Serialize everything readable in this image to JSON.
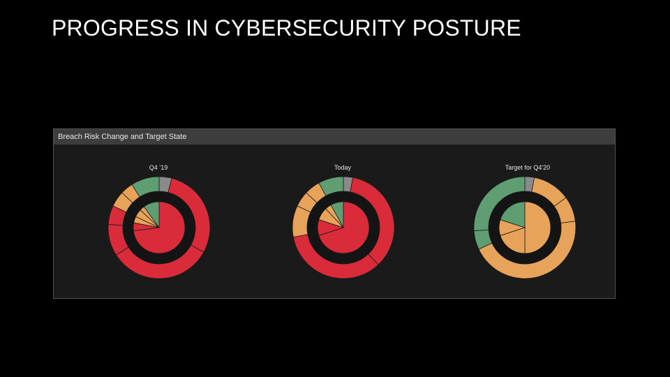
{
  "slide": {
    "title": "PROGRESS IN CYBERSECURITY POSTURE"
  },
  "panel": {
    "header": "Breach Risk Change and Target State"
  },
  "colors": {
    "red": "#d92b3a",
    "orange": "#e8a35a",
    "green": "#5f9e72",
    "gray": "#8a8a8a",
    "ring_gap": "#141414"
  },
  "chart_data": [
    {
      "type": "pie",
      "title": "Q4 ’19",
      "outer": [
        {
          "label": "",
          "value": 4,
          "color": "gray"
        },
        {
          "label": "",
          "value": 29,
          "color": "red"
        },
        {
          "label": "",
          "value": 33,
          "color": "red"
        },
        {
          "label": "",
          "value": 10,
          "color": "red"
        },
        {
          "label": "",
          "value": 6,
          "color": "red"
        },
        {
          "label": "",
          "value": 5,
          "color": "orange"
        },
        {
          "label": "",
          "value": 4,
          "color": "orange"
        },
        {
          "label": "",
          "value": 9,
          "color": "green"
        }
      ],
      "inner": [
        {
          "label": "",
          "value": 73,
          "color": "red"
        },
        {
          "label": "",
          "value": 5,
          "color": "red"
        },
        {
          "label": "",
          "value": 4,
          "color": "orange"
        },
        {
          "label": "",
          "value": 5,
          "color": "orange"
        },
        {
          "label": "",
          "value": 3,
          "color": "orange"
        },
        {
          "label": "",
          "value": 10,
          "color": "green"
        }
      ]
    },
    {
      "type": "pie",
      "title": "Today",
      "outer": [
        {
          "label": "",
          "value": 3,
          "color": "gray"
        },
        {
          "label": "",
          "value": 35,
          "color": "red"
        },
        {
          "label": "",
          "value": 34,
          "color": "red"
        },
        {
          "label": "",
          "value": 10,
          "color": "orange"
        },
        {
          "label": "",
          "value": 5,
          "color": "orange"
        },
        {
          "label": "",
          "value": 5,
          "color": "orange"
        },
        {
          "label": "",
          "value": 8,
          "color": "green"
        }
      ],
      "inner": [
        {
          "label": "",
          "value": 70,
          "color": "red"
        },
        {
          "label": "",
          "value": 10,
          "color": "red"
        },
        {
          "label": "",
          "value": 8,
          "color": "orange"
        },
        {
          "label": "",
          "value": 4,
          "color": "orange"
        },
        {
          "label": "",
          "value": 8,
          "color": "green"
        }
      ]
    },
    {
      "type": "pie",
      "title": "Target for Q4'20",
      "outer": [
        {
          "label": "",
          "value": 3,
          "color": "gray"
        },
        {
          "label": "",
          "value": 12,
          "color": "orange"
        },
        {
          "label": "",
          "value": 8,
          "color": "orange"
        },
        {
          "label": "",
          "value": 45,
          "color": "orange"
        },
        {
          "label": "",
          "value": 6,
          "color": "green"
        },
        {
          "label": "",
          "value": 26,
          "color": "green"
        }
      ],
      "inner": [
        {
          "label": "",
          "value": 50,
          "color": "orange"
        },
        {
          "label": "",
          "value": 20,
          "color": "orange"
        },
        {
          "label": "",
          "value": 10,
          "color": "orange"
        },
        {
          "label": "",
          "value": 20,
          "color": "green"
        }
      ]
    }
  ]
}
